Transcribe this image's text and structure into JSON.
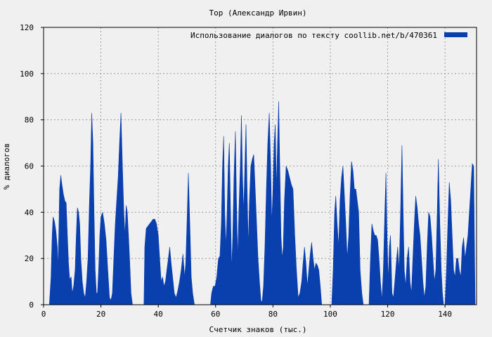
{
  "chart_data": {
    "type": "area",
    "title": "Тор (Александр Ирвин)",
    "xlabel": "Счетчик знаков (тыс.)",
    "ylabel": "% диалогов",
    "xlim": [
      0,
      151
    ],
    "ylim": [
      0,
      120
    ],
    "x_ticks": [
      0,
      20,
      40,
      60,
      80,
      100,
      120,
      140
    ],
    "y_ticks": [
      0,
      20,
      40,
      60,
      80,
      100,
      120
    ],
    "grid": true,
    "legend_position": "top-right",
    "series": [
      {
        "name": "Использование диалогов по тексту  coollib.net/b/470361",
        "color": "#0a3fae",
        "points": [
          [
            2.0,
            0
          ],
          [
            2.6,
            12
          ],
          [
            3.0,
            30
          ],
          [
            3.3,
            38
          ],
          [
            3.8,
            36
          ],
          [
            4.3,
            32
          ],
          [
            4.8,
            25
          ],
          [
            5.0,
            15
          ],
          [
            5.3,
            30
          ],
          [
            5.6,
            50
          ],
          [
            6.0,
            56
          ],
          [
            6.4,
            52
          ],
          [
            6.9,
            48
          ],
          [
            7.4,
            45
          ],
          [
            7.9,
            44
          ],
          [
            8.3,
            30
          ],
          [
            8.7,
            18
          ],
          [
            9.1,
            11
          ],
          [
            9.6,
            12
          ],
          [
            10.0,
            5
          ],
          [
            10.5,
            8
          ],
          [
            11.0,
            15
          ],
          [
            11.4,
            30
          ],
          [
            11.8,
            42
          ],
          [
            12.2,
            40
          ],
          [
            12.6,
            35
          ],
          [
            13.0,
            20
          ],
          [
            13.5,
            10
          ],
          [
            14.0,
            5
          ],
          [
            14.5,
            3
          ],
          [
            15.0,
            10
          ],
          [
            15.5,
            20
          ],
          [
            16.0,
            45
          ],
          [
            16.4,
            60
          ],
          [
            16.8,
            83
          ],
          [
            17.2,
            70
          ],
          [
            17.6,
            40
          ],
          [
            18.0,
            15
          ],
          [
            18.4,
            5
          ],
          [
            18.8,
            5
          ],
          [
            19.2,
            15
          ],
          [
            19.6,
            30
          ],
          [
            20.0,
            38
          ],
          [
            20.6,
            40
          ],
          [
            21.2,
            35
          ],
          [
            21.8,
            28
          ],
          [
            22.4,
            15
          ],
          [
            23.0,
            3
          ],
          [
            23.5,
            2
          ],
          [
            24.0,
            5
          ],
          [
            24.5,
            20
          ],
          [
            25.0,
            35
          ],
          [
            25.5,
            45
          ],
          [
            26.0,
            55
          ],
          [
            26.5,
            70
          ],
          [
            27.0,
            83
          ],
          [
            27.5,
            60
          ],
          [
            28.0,
            40
          ],
          [
            28.4,
            30
          ],
          [
            28.8,
            43
          ],
          [
            29.2,
            40
          ],
          [
            29.6,
            30
          ],
          [
            30.0,
            20
          ],
          [
            30.5,
            5
          ],
          [
            31.0,
            0
          ],
          [
            35.0,
            0
          ],
          [
            35.3,
            25
          ],
          [
            35.8,
            33
          ],
          [
            36.4,
            34
          ],
          [
            37.0,
            35
          ],
          [
            37.6,
            36
          ],
          [
            38.2,
            37
          ],
          [
            38.8,
            37
          ],
          [
            39.4,
            35
          ],
          [
            40.0,
            30
          ],
          [
            40.5,
            20
          ],
          [
            41.0,
            10
          ],
          [
            41.5,
            12
          ],
          [
            42.0,
            8
          ],
          [
            42.5,
            10
          ],
          [
            43.0,
            15
          ],
          [
            43.5,
            20
          ],
          [
            44.0,
            25
          ],
          [
            44.5,
            18
          ],
          [
            45.0,
            12
          ],
          [
            45.6,
            5
          ],
          [
            46.2,
            3
          ],
          [
            46.8,
            6
          ],
          [
            47.4,
            10
          ],
          [
            48.0,
            15
          ],
          [
            48.6,
            22
          ],
          [
            49.2,
            12
          ],
          [
            49.6,
            18
          ],
          [
            50.0,
            35
          ],
          [
            50.5,
            57
          ],
          [
            51.0,
            35
          ],
          [
            51.5,
            12
          ],
          [
            52.0,
            5
          ],
          [
            52.6,
            0
          ],
          [
            58.2,
            0
          ],
          [
            58.6,
            5
          ],
          [
            59.2,
            8
          ],
          [
            59.8,
            8
          ],
          [
            60.4,
            12
          ],
          [
            61.0,
            20
          ],
          [
            61.5,
            21
          ],
          [
            62.0,
            35
          ],
          [
            62.4,
            60
          ],
          [
            62.8,
            73
          ],
          [
            63.2,
            40
          ],
          [
            63.6,
            25
          ],
          [
            64.0,
            40
          ],
          [
            64.4,
            60
          ],
          [
            64.8,
            70
          ],
          [
            65.2,
            40
          ],
          [
            65.6,
            15
          ],
          [
            66.0,
            30
          ],
          [
            66.4,
            55
          ],
          [
            66.9,
            75
          ],
          [
            67.3,
            45
          ],
          [
            67.7,
            20
          ],
          [
            68.1,
            40
          ],
          [
            68.6,
            60
          ],
          [
            69.0,
            82
          ],
          [
            69.4,
            55
          ],
          [
            69.8,
            40
          ],
          [
            70.2,
            60
          ],
          [
            70.6,
            78
          ],
          [
            71.0,
            50
          ],
          [
            71.4,
            25
          ],
          [
            71.8,
            45
          ],
          [
            72.3,
            60
          ],
          [
            72.8,
            63
          ],
          [
            73.3,
            65
          ],
          [
            73.8,
            50
          ],
          [
            74.3,
            35
          ],
          [
            74.8,
            20
          ],
          [
            75.3,
            10
          ],
          [
            75.8,
            2
          ],
          [
            76.2,
            1
          ],
          [
            76.7,
            8
          ],
          [
            77.2,
            25
          ],
          [
            77.7,
            50
          ],
          [
            78.2,
            70
          ],
          [
            78.7,
            83
          ],
          [
            79.2,
            60
          ],
          [
            79.6,
            35
          ],
          [
            80.0,
            50
          ],
          [
            80.4,
            70
          ],
          [
            80.8,
            78
          ],
          [
            81.2,
            50
          ],
          [
            81.6,
            70
          ],
          [
            82.0,
            88
          ],
          [
            82.4,
            60
          ],
          [
            82.8,
            30
          ],
          [
            83.2,
            20
          ],
          [
            83.6,
            25
          ],
          [
            84.0,
            45
          ],
          [
            84.6,
            60
          ],
          [
            85.2,
            58
          ],
          [
            85.8,
            55
          ],
          [
            86.4,
            52
          ],
          [
            87.0,
            50
          ],
          [
            87.6,
            30
          ],
          [
            88.2,
            15
          ],
          [
            88.8,
            3
          ],
          [
            89.4,
            5
          ],
          [
            90.0,
            10
          ],
          [
            90.5,
            18
          ],
          [
            91.0,
            25
          ],
          [
            91.5,
            18
          ],
          [
            92.0,
            8
          ],
          [
            92.5,
            15
          ],
          [
            93.0,
            22
          ],
          [
            93.5,
            27
          ],
          [
            94.0,
            20
          ],
          [
            94.5,
            15
          ],
          [
            95.0,
            18
          ],
          [
            95.5,
            17
          ],
          [
            96.0,
            15
          ],
          [
            96.5,
            8
          ],
          [
            97.0,
            0
          ],
          [
            100.5,
            0
          ],
          [
            101.0,
            15
          ],
          [
            101.5,
            40
          ],
          [
            101.9,
            47
          ],
          [
            102.4,
            35
          ],
          [
            102.9,
            25
          ],
          [
            103.4,
            45
          ],
          [
            103.9,
            55
          ],
          [
            104.4,
            60
          ],
          [
            104.9,
            48
          ],
          [
            105.4,
            35
          ],
          [
            105.9,
            20
          ],
          [
            106.4,
            30
          ],
          [
            106.9,
            48
          ],
          [
            107.4,
            62
          ],
          [
            107.9,
            58
          ],
          [
            108.4,
            50
          ],
          [
            108.9,
            50
          ],
          [
            109.4,
            45
          ],
          [
            109.9,
            40
          ],
          [
            110.4,
            15
          ],
          [
            111.0,
            5
          ],
          [
            111.5,
            0
          ],
          [
            113.5,
            0
          ],
          [
            114.0,
            20
          ],
          [
            114.5,
            35
          ],
          [
            115.0,
            32
          ],
          [
            115.5,
            30
          ],
          [
            116.0,
            30
          ],
          [
            116.5,
            28
          ],
          [
            117.0,
            20
          ],
          [
            117.5,
            10
          ],
          [
            118.0,
            2
          ],
          [
            118.5,
            15
          ],
          [
            119.0,
            40
          ],
          [
            119.4,
            57
          ],
          [
            119.8,
            30
          ],
          [
            120.2,
            10
          ],
          [
            120.6,
            25
          ],
          [
            121.0,
            30
          ],
          [
            121.5,
            5
          ],
          [
            122.0,
            3
          ],
          [
            122.5,
            10
          ],
          [
            123.0,
            18
          ],
          [
            123.5,
            25
          ],
          [
            124.0,
            15
          ],
          [
            124.5,
            40
          ],
          [
            125.0,
            69
          ],
          [
            125.4,
            40
          ],
          [
            125.8,
            15
          ],
          [
            126.3,
            8
          ],
          [
            126.8,
            20
          ],
          [
            127.3,
            25
          ],
          [
            127.8,
            10
          ],
          [
            128.3,
            5
          ],
          [
            128.8,
            20
          ],
          [
            129.3,
            35
          ],
          [
            129.8,
            47
          ],
          [
            130.3,
            42
          ],
          [
            130.8,
            35
          ],
          [
            131.3,
            30
          ],
          [
            131.8,
            20
          ],
          [
            132.3,
            10
          ],
          [
            132.8,
            3
          ],
          [
            133.3,
            8
          ],
          [
            133.8,
            25
          ],
          [
            134.3,
            40
          ],
          [
            134.8,
            38
          ],
          [
            135.3,
            30
          ],
          [
            135.8,
            20
          ],
          [
            136.3,
            10
          ],
          [
            136.8,
            15
          ],
          [
            137.3,
            40
          ],
          [
            137.7,
            63
          ],
          [
            138.2,
            35
          ],
          [
            138.7,
            15
          ],
          [
            139.1,
            5
          ],
          [
            139.5,
            0
          ],
          [
            140.0,
            0
          ],
          [
            140.5,
            15
          ],
          [
            141.0,
            35
          ],
          [
            141.5,
            53
          ],
          [
            142.0,
            45
          ],
          [
            142.5,
            30
          ],
          [
            143.0,
            15
          ],
          [
            143.5,
            12
          ],
          [
            144.0,
            20
          ],
          [
            144.5,
            20
          ],
          [
            145.0,
            15
          ],
          [
            145.5,
            12
          ],
          [
            146.0,
            25
          ],
          [
            146.5,
            29
          ],
          [
            147.0,
            20
          ],
          [
            147.5,
            25
          ],
          [
            148.0,
            30
          ],
          [
            148.5,
            40
          ],
          [
            149.0,
            50
          ],
          [
            149.5,
            61
          ],
          [
            150.0,
            60
          ],
          [
            150.5,
            0
          ]
        ]
      }
    ]
  }
}
